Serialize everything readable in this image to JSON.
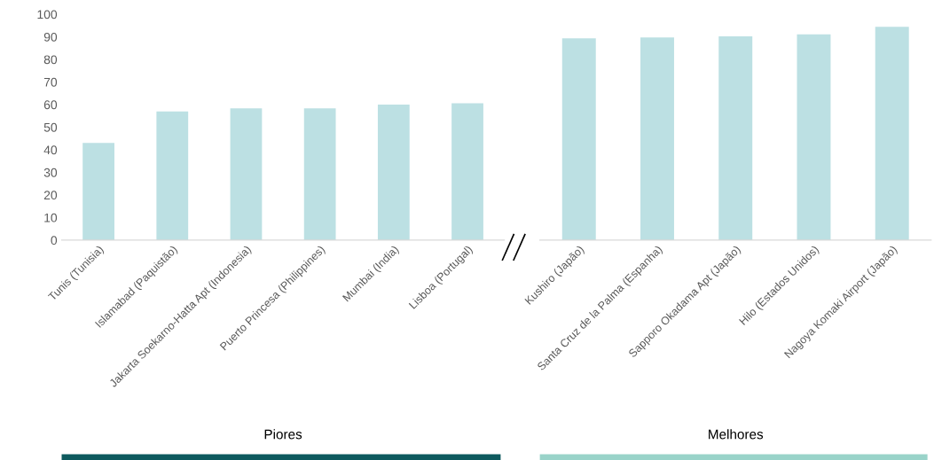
{
  "chart_data": [
    {
      "type": "bar",
      "categories": [
        "Tunis (Tunisia)",
        "Islamabad (Paquistão)",
        "Jakarta Soekarno-Hatta Apt (Indonesia)",
        "Puerto Princesa (Philippines)",
        "Mumbai (India)",
        "Lisboa (Portugal)"
      ],
      "values": [
        43,
        57,
        58.3,
        58.3,
        60,
        60.6
      ],
      "color": "#bce0e3",
      "ylim": [
        0,
        100
      ],
      "yticks": [
        0,
        10,
        20,
        30,
        40,
        50,
        60,
        70,
        80,
        90,
        100
      ],
      "annotations": [
        "Piores"
      ]
    },
    {
      "type": "bar",
      "categories": [
        "Kushiro (Japão)",
        "Santa Cruz de la Palma (Espanha)",
        "Sapporo Okadama Apt (Japão)",
        "Hilo (Estados Unidos)",
        "Nagoya Komaki Airport (Japão)"
      ],
      "values": [
        89.3,
        89.7,
        90.2,
        91.1,
        94.4
      ],
      "color": "#bce0e3",
      "ylim": [
        0,
        100
      ],
      "yticks": [
        0,
        10,
        20,
        30,
        40,
        50,
        60,
        70,
        80,
        90,
        100
      ],
      "tick_labels": "x",
      "annotations": [
        "Melhores"
      ]
    }
  ]
}
